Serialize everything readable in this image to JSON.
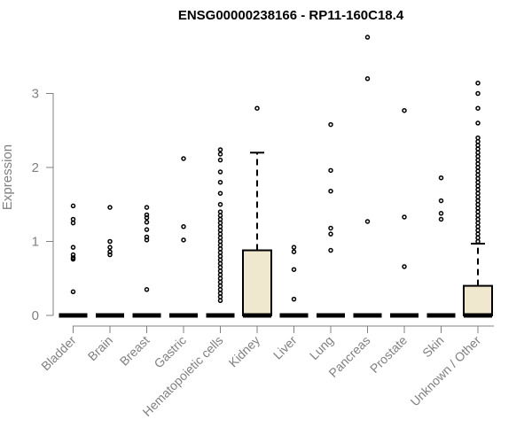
{
  "chart_data": {
    "type": "boxplot",
    "title": "ENSG00000238166 - RP11-160C18.4",
    "xlabel": "",
    "ylabel": "Expression",
    "ylim": [
      0,
      4
    ],
    "yticks": [
      0,
      1,
      2,
      3
    ],
    "grid": false,
    "legend": "none",
    "box_fill": "#EFE8CF",
    "categories": [
      "Bladder",
      "Brain",
      "Breast",
      "Gastric",
      "Hematopoietic cells",
      "Kidney",
      "Liver",
      "Lung",
      "Pancreas",
      "Prostate",
      "Skin",
      "Unknown / Other"
    ],
    "boxes": [
      {
        "category": "Bladder",
        "min": 0,
        "q1": 0,
        "median": 0,
        "q3": 0,
        "max": 0,
        "outliers": [
          1.48,
          1.3,
          1.25,
          0.92,
          0.82,
          0.78,
          0.76,
          0.32
        ]
      },
      {
        "category": "Brain",
        "min": 0,
        "q1": 0,
        "median": 0,
        "q3": 0,
        "max": 0,
        "outliers": [
          1.46,
          1.0,
          0.92,
          0.86,
          0.82
        ]
      },
      {
        "category": "Breast",
        "min": 0,
        "q1": 0,
        "median": 0,
        "q3": 0,
        "max": 0,
        "outliers": [
          1.46,
          1.36,
          1.32,
          1.26,
          1.16,
          1.06,
          1.02,
          0.35
        ]
      },
      {
        "category": "Gastric",
        "min": 0,
        "q1": 0,
        "median": 0,
        "q3": 0,
        "max": 0,
        "outliers": [
          2.12,
          1.2,
          1.02
        ]
      },
      {
        "category": "Hematopoietic cells",
        "min": 0,
        "q1": 0,
        "median": 0,
        "q3": 0,
        "max": 0,
        "outliers": [
          2.24,
          2.18,
          2.1,
          1.94,
          1.8,
          1.65,
          1.5,
          1.4,
          1.35,
          1.3,
          1.25,
          1.2,
          1.15,
          1.1,
          1.05,
          1.0,
          0.95,
          0.9,
          0.85,
          0.8,
          0.75,
          0.7,
          0.65,
          0.6,
          0.55,
          0.5,
          0.45,
          0.4,
          0.35,
          0.3,
          0.25,
          0.2
        ]
      },
      {
        "category": "Kidney",
        "min": 0,
        "q1": 0,
        "median": 0,
        "q3": 0.88,
        "max": 2.2,
        "outliers": [
          2.8
        ]
      },
      {
        "category": "Liver",
        "min": 0,
        "q1": 0,
        "median": 0,
        "q3": 0,
        "max": 0,
        "outliers": [
          0.92,
          0.86,
          0.62,
          0.22
        ]
      },
      {
        "category": "Lung",
        "min": 0,
        "q1": 0,
        "median": 0,
        "q3": 0,
        "max": 0,
        "outliers": [
          2.58,
          1.96,
          1.68,
          1.18,
          1.1,
          0.88
        ]
      },
      {
        "category": "Pancreas",
        "min": 0,
        "q1": 0,
        "median": 0,
        "q3": 0,
        "max": 0,
        "outliers": [
          3.76,
          3.2,
          1.27
        ]
      },
      {
        "category": "Prostate",
        "min": 0,
        "q1": 0,
        "median": 0,
        "q3": 0,
        "max": 0,
        "outliers": [
          2.77,
          1.33,
          0.66
        ]
      },
      {
        "category": "Skin",
        "min": 0,
        "q1": 0,
        "median": 0,
        "q3": 0,
        "max": 0,
        "outliers": [
          1.86,
          1.55,
          1.38,
          1.3
        ]
      },
      {
        "category": "Unknown / Other",
        "min": 0,
        "q1": 0,
        "median": 0,
        "q3": 0.4,
        "max": 0.97,
        "outliers": [
          3.14,
          3.0,
          2.8,
          2.6,
          2.4,
          2.35,
          2.3,
          2.25,
          2.2,
          2.15,
          2.1,
          2.05,
          2.0,
          1.95,
          1.9,
          1.85,
          1.8,
          1.75,
          1.7,
          1.65,
          1.6,
          1.55,
          1.5,
          1.45,
          1.4,
          1.35,
          1.3,
          1.25,
          1.2,
          1.15,
          1.1,
          1.05,
          1.0
        ]
      }
    ]
  }
}
